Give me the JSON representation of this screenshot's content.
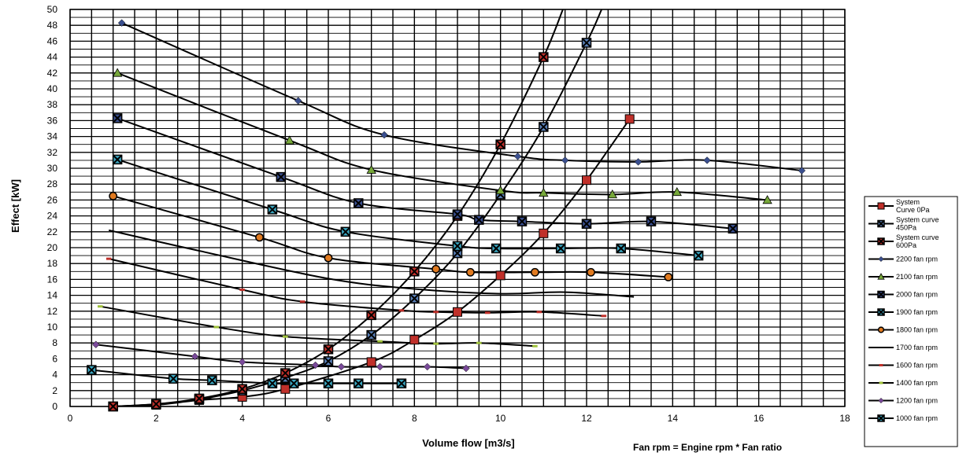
{
  "chart_data": {
    "type": "line",
    "title": "",
    "xlabel": "Volume flow [m3/s]",
    "ylabel": "Effect [kW]",
    "xlim": [
      0,
      18
    ],
    "ylim": [
      0,
      50
    ],
    "xticks": [
      0,
      2,
      4,
      6,
      8,
      10,
      12,
      14,
      16,
      18
    ],
    "yticks": [
      0,
      2,
      4,
      6,
      8,
      10,
      12,
      14,
      16,
      18,
      20,
      22,
      24,
      26,
      28,
      30,
      32,
      34,
      36,
      38,
      40,
      42,
      44,
      46,
      48,
      50
    ],
    "grid": true,
    "legend_position": "right",
    "footnote": "Fan rpm = Engine rpm * Fan ratio",
    "series": [
      {
        "name": "System Curve 0Pa",
        "legend_lines": [
          "System",
          "Curve 0Pa"
        ],
        "marker": "square",
        "color": "#c0302a",
        "points": [
          [
            1,
            0
          ],
          [
            2,
            0.2
          ],
          [
            3,
            0.8
          ],
          [
            4,
            1.2
          ],
          [
            5,
            2.2
          ],
          [
            7,
            5.6
          ],
          [
            8,
            8.4
          ],
          [
            9,
            11.9
          ],
          [
            10,
            16.5
          ],
          [
            11,
            21.8
          ],
          [
            12,
            28.5
          ],
          [
            13,
            36.2
          ]
        ]
      },
      {
        "name": "System curve 450Pa",
        "legend_lines": [
          "System curve",
          "450Pa"
        ],
        "marker": "square-x",
        "color": "#5a80b8",
        "points": [
          [
            1,
            0
          ],
          [
            2,
            0.3
          ],
          [
            3,
            0.9
          ],
          [
            4,
            2.0
          ],
          [
            5,
            3.6
          ],
          [
            6,
            5.7
          ],
          [
            7,
            9.0
          ],
          [
            8,
            13.6
          ],
          [
            9,
            19.3
          ],
          [
            10,
            26.7
          ],
          [
            11,
            35.2
          ],
          [
            12,
            45.8
          ],
          [
            12.35,
            50
          ]
        ]
      },
      {
        "name": "System curve 600Pa",
        "legend_lines": [
          "System curve",
          "600Pa"
        ],
        "marker": "square-x",
        "color": "#c0302a",
        "points": [
          [
            1,
            0
          ],
          [
            2,
            0.3
          ],
          [
            3,
            1.0
          ],
          [
            4,
            2.2
          ],
          [
            5,
            4.2
          ],
          [
            6,
            7.2
          ],
          [
            7,
            11.5
          ],
          [
            8,
            17.0
          ],
          [
            9,
            24.0
          ],
          [
            10,
            33.0
          ],
          [
            11,
            44.0
          ],
          [
            11.45,
            50
          ]
        ]
      },
      {
        "name": "2200 fan rpm",
        "marker": "diamond",
        "color": "#3a4f8f",
        "points": [
          [
            1.2,
            48.3
          ],
          [
            5.3,
            38.5
          ],
          [
            7.3,
            34.2
          ],
          [
            10.4,
            31.5
          ],
          [
            11.5,
            31.0
          ],
          [
            13.2,
            30.8
          ],
          [
            14.8,
            31.0
          ],
          [
            17,
            29.7
          ]
        ]
      },
      {
        "name": "2100 fan rpm",
        "marker": "triangle",
        "color": "#77a83a",
        "points": [
          [
            1.1,
            42.0
          ],
          [
            5.1,
            33.5
          ],
          [
            7,
            29.8
          ],
          [
            10,
            27.2
          ],
          [
            11,
            26.9
          ],
          [
            12.6,
            26.7
          ],
          [
            14.1,
            27.0
          ],
          [
            16.2,
            26.0
          ]
        ]
      },
      {
        "name": "2000 fan rpm",
        "marker": "square-x",
        "color": "#3a4f8f",
        "points": [
          [
            1.1,
            36.3
          ],
          [
            4.9,
            28.9
          ],
          [
            6.7,
            25.6
          ],
          [
            9,
            24.2
          ],
          [
            9.5,
            23.5
          ],
          [
            10.5,
            23.3
          ],
          [
            12,
            23.0
          ],
          [
            13.5,
            23.3
          ],
          [
            15.4,
            22.4
          ]
        ]
      },
      {
        "name": "1900 fan rpm",
        "marker": "square-x",
        "color": "#3aa6c0",
        "points": [
          [
            1.1,
            31.1
          ],
          [
            4.7,
            24.8
          ],
          [
            6.4,
            22.0
          ],
          [
            9,
            20.2
          ],
          [
            9.9,
            19.9
          ],
          [
            11.4,
            19.9
          ],
          [
            12.8,
            19.9
          ],
          [
            14.6,
            19.0
          ]
        ]
      },
      {
        "name": "1800 fan rpm",
        "marker": "circle",
        "color": "#e07a20",
        "points": [
          [
            1,
            26.5
          ],
          [
            4.4,
            21.3
          ],
          [
            6,
            18.7
          ],
          [
            8.5,
            17.3
          ],
          [
            9.3,
            16.9
          ],
          [
            10.8,
            16.9
          ],
          [
            12.1,
            16.9
          ],
          [
            13.9,
            16.3
          ]
        ]
      },
      {
        "name": "1700 fan rpm",
        "marker": "none",
        "color": "#000000",
        "points": [
          [
            0.9,
            22.2
          ],
          [
            3,
            19.6
          ],
          [
            6,
            16.1
          ],
          [
            8,
            14.8
          ],
          [
            10,
            14.2
          ],
          [
            11.5,
            14.4
          ],
          [
            13.1,
            13.8
          ]
        ]
      },
      {
        "name": "1600 fan rpm",
        "marker": "dash",
        "color": "#c0302a",
        "points": [
          [
            0.9,
            18.6
          ],
          [
            4,
            14.7
          ],
          [
            5.4,
            13.2
          ],
          [
            7.7,
            12.1
          ],
          [
            8.5,
            11.9
          ],
          [
            9.7,
            11.8
          ],
          [
            10.9,
            11.9
          ],
          [
            12.4,
            11.4
          ]
        ]
      },
      {
        "name": "1400 fan rpm",
        "marker": "dash",
        "color": "#9fc13a",
        "points": [
          [
            0.7,
            12.6
          ],
          [
            3.4,
            10.0
          ],
          [
            5,
            8.8
          ],
          [
            7.2,
            8.2
          ],
          [
            8.5,
            7.9
          ],
          [
            9.5,
            8.0
          ],
          [
            10.8,
            7.6
          ]
        ]
      },
      {
        "name": "1200 fan rpm",
        "marker": "diamond",
        "color": "#7a4a9a",
        "points": [
          [
            0.6,
            7.8
          ],
          [
            2.9,
            6.3
          ],
          [
            4,
            5.6
          ],
          [
            5.7,
            5.2
          ],
          [
            6.3,
            5.0
          ],
          [
            7.2,
            5.0
          ],
          [
            8.3,
            5.0
          ],
          [
            9.2,
            4.8
          ]
        ]
      },
      {
        "name": "1000 fan rpm",
        "marker": "square-x",
        "color": "#3aa6c0",
        "points": [
          [
            0.5,
            4.6
          ],
          [
            2.4,
            3.5
          ],
          [
            3.3,
            3.3
          ],
          [
            4.7,
            2.9
          ],
          [
            5.2,
            2.9
          ],
          [
            6,
            2.9
          ],
          [
            6.7,
            2.9
          ],
          [
            7.7,
            2.9
          ]
        ]
      }
    ]
  }
}
